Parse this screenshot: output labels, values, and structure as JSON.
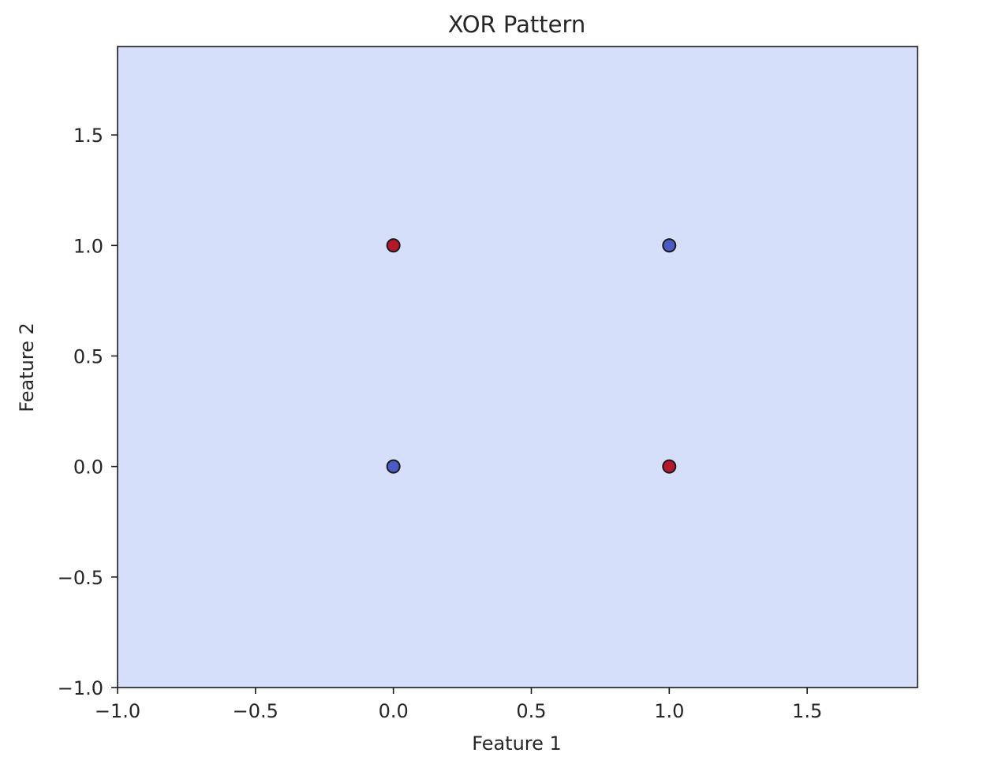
{
  "chart_data": {
    "type": "scatter",
    "title": "XOR Pattern",
    "xlabel": "Feature 1",
    "ylabel": "Feature 2",
    "xlim": [
      -1.0,
      1.9
    ],
    "ylim": [
      -1.0,
      1.9
    ],
    "xticks": [
      -1.0,
      -0.5,
      0.0,
      0.5,
      1.0,
      1.5
    ],
    "yticks": [
      -1.0,
      -0.5,
      0.0,
      0.5,
      1.0,
      1.5
    ],
    "xtick_labels": [
      "−1.0",
      "−0.5",
      "0.0",
      "0.5",
      "1.0",
      "1.5"
    ],
    "ytick_labels": [
      "−1.0",
      "−0.5",
      "0.0",
      "0.5",
      "1.0",
      "1.5"
    ],
    "grid": false,
    "background_region_color": "#d6dffa",
    "points": [
      {
        "x": 0,
        "y": 0,
        "class": 0
      },
      {
        "x": 0,
        "y": 1,
        "class": 1
      },
      {
        "x": 1,
        "y": 0,
        "class": 1
      },
      {
        "x": 1,
        "y": 1,
        "class": 0
      }
    ],
    "class_colors": {
      "0": "#4a5cc4",
      "1": "#b5172c"
    },
    "point_edge_color": "#1a1a1a"
  }
}
